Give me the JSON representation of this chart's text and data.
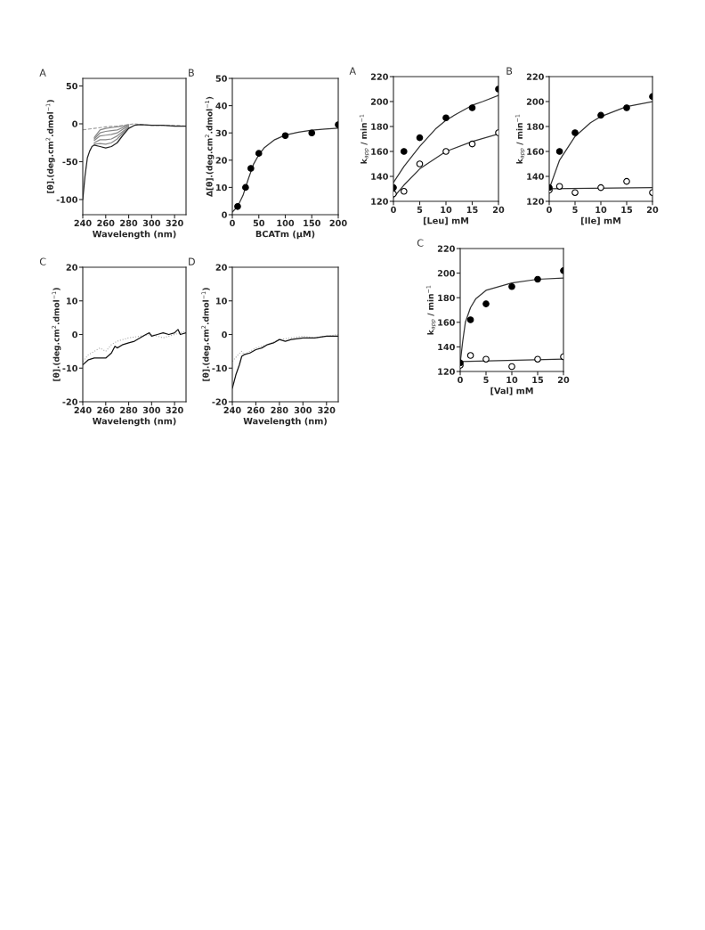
{
  "chart_data": [
    {
      "type": "line",
      "title": "A",
      "xlabel": "Wavelength (nm)",
      "ylabel": "[θ].(deg.cm$^{2}$.dmol$^{−1}$)",
      "xlim": [
        240,
        330
      ],
      "xticks": [
        240,
        260,
        280,
        300,
        320
      ],
      "ylim": [
        -120,
        60
      ],
      "yticks": [
        -100,
        -50,
        0,
        50
      ],
      "marker": "none",
      "x": [
        240,
        242,
        244,
        246,
        248,
        250,
        255,
        260,
        265,
        270,
        275,
        280,
        285,
        290,
        300,
        310,
        320,
        330
      ],
      "series": [
        {
          "color": "#999999",
          "line_style": "dashed",
          "x": [
            240,
            250,
            260,
            270,
            280,
            285,
            290,
            300,
            310,
            320,
            330
          ],
          "values": [
            -8,
            -6,
            -4,
            -3,
            -1,
            0,
            -1,
            -2,
            -2,
            -2,
            -3
          ]
        },
        {
          "color": "#888888",
          "values": [
            null,
            null,
            null,
            null,
            null,
            -18,
            -8,
            -6,
            -5,
            -4,
            -3,
            -1,
            null,
            null,
            null,
            null,
            null,
            null
          ]
        },
        {
          "color": "#888888",
          "values": [
            null,
            null,
            null,
            null,
            null,
            -20,
            -12,
            -10,
            -9,
            -8,
            -5,
            -2,
            null,
            null,
            null,
            null,
            null,
            null
          ]
        },
        {
          "color": "#888888",
          "values": [
            null,
            null,
            null,
            null,
            null,
            -22,
            -16,
            -15,
            -14,
            -12,
            -7,
            -3,
            null,
            null,
            null,
            null,
            null,
            null
          ]
        },
        {
          "color": "#888888",
          "values": [
            null,
            null,
            null,
            null,
            null,
            -25,
            -21,
            -21,
            -20,
            -16,
            -10,
            -4,
            null,
            null,
            null,
            null,
            null,
            null
          ]
        },
        {
          "color": "#888888",
          "values": [
            null,
            null,
            null,
            null,
            null,
            -27,
            -26,
            -27,
            -25,
            -20,
            -12,
            -5,
            null,
            null,
            null,
            null,
            null,
            null
          ]
        },
        {
          "color": "#222222",
          "values": [
            -100,
            -68,
            -45,
            -36,
            -30,
            -28,
            -30,
            -32,
            -30,
            -25,
            -15,
            -6,
            -2,
            -1,
            -2,
            -2,
            -3,
            -3
          ]
        }
      ]
    },
    {
      "type": "scatter",
      "title": "B",
      "xlabel": "BCATm (μM)",
      "ylabel": "Δ[θ].(deg.cm$^{2}$.dmol$^{−1}$)",
      "xlim": [
        0,
        200
      ],
      "xticks": [
        0,
        50,
        100,
        150,
        200
      ],
      "ylim": [
        0,
        50
      ],
      "yticks": [
        0,
        10,
        20,
        30,
        40,
        50
      ],
      "marker": "circle",
      "series": [
        {
          "type": "scatter",
          "color": "#000000",
          "x": [
            10,
            25,
            35,
            50,
            100,
            150,
            200
          ],
          "values": [
            3,
            10,
            17,
            22.5,
            29,
            30,
            33
          ]
        },
        {
          "type": "line",
          "color": "#333333",
          "marker": "none",
          "x": [
            0,
            10,
            20,
            30,
            40,
            50,
            60,
            80,
            100,
            125,
            150,
            175,
            200
          ],
          "values": [
            1,
            3,
            7,
            13,
            18.5,
            22,
            24.5,
            27.5,
            29.2,
            30.3,
            31,
            31.4,
            31.7
          ]
        }
      ]
    },
    {
      "type": "line",
      "title": "C",
      "xlabel": "Wavelength (nm)",
      "ylabel": "[θ].(deg.cm$^{2}$.dmol$^{−1}$)",
      "xlim": [
        240,
        330
      ],
      "xticks": [
        240,
        260,
        280,
        300,
        320
      ],
      "ylim": [
        -20,
        20
      ],
      "yticks": [
        -20,
        -10,
        0,
        10,
        20
      ],
      "marker": "none",
      "series": [
        {
          "color": "#aaaaaa",
          "line_style": "dotted",
          "x": [
            240,
            245,
            250,
            255,
            260,
            265,
            270,
            280,
            290,
            300,
            310,
            320,
            330
          ],
          "values": [
            -8,
            -6,
            -5,
            -4,
            -5,
            -3,
            -2,
            -1,
            -0.5,
            0,
            -1,
            0,
            1
          ]
        },
        {
          "color": "#111111",
          "x": [
            240,
            245,
            250,
            255,
            260,
            265,
            268,
            270,
            275,
            280,
            285,
            290,
            295,
            298,
            300,
            305,
            310,
            315,
            320,
            323,
            325,
            330
          ],
          "values": [
            -9,
            -7.5,
            -7,
            -7,
            -7,
            -5.5,
            -3.5,
            -4,
            -3,
            -2.5,
            -2,
            -1,
            0,
            0.5,
            -0.5,
            0,
            0.5,
            0,
            0.5,
            1.5,
            0,
            0.5
          ]
        }
      ]
    },
    {
      "type": "line",
      "title": "D",
      "xlabel": "Wavelength (nm)",
      "ylabel": "[θ].(deg.cm$^{2}$.dmol$^{−1}$)",
      "xlim": [
        240,
        330
      ],
      "xticks": [
        240,
        260,
        280,
        300,
        320
      ],
      "ylim": [
        -20,
        20
      ],
      "yticks": [
        -20,
        -10,
        0,
        10,
        20
      ],
      "marker": "none",
      "series": [
        {
          "color": "#aaaaaa",
          "line_style": "dotted",
          "x": [
            240,
            245,
            248,
            250,
            260,
            270,
            280,
            290,
            300,
            310,
            320,
            330
          ],
          "values": [
            -8,
            -6,
            -5,
            -6,
            -4,
            -3,
            -1.5,
            -1,
            -0.5,
            -1,
            -0.5,
            0
          ]
        },
        {
          "color": "#111111",
          "x": [
            240,
            243,
            246,
            248,
            250,
            255,
            260,
            265,
            270,
            275,
            280,
            285,
            290,
            300,
            310,
            320,
            330
          ],
          "values": [
            -16,
            -12,
            -9,
            -6.5,
            -6,
            -5.5,
            -4.5,
            -4,
            -3,
            -2.5,
            -1.5,
            -2,
            -1.5,
            -1,
            -1,
            -0.5,
            -0.5
          ]
        }
      ]
    },
    {
      "type": "scatter",
      "title": "A",
      "xlabel": "[Leu] mM",
      "ylabel": "k$_{app}$ / min$^{−1}$",
      "xlim": [
        0,
        20
      ],
      "xticks": [
        0,
        5,
        10,
        15,
        20
      ],
      "ylim": [
        120,
        220
      ],
      "yticks": [
        120,
        140,
        160,
        180,
        200,
        220
      ],
      "marker": "circle",
      "series": [
        {
          "type": "scatter",
          "color": "#000000",
          "x": [
            0,
            2,
            5,
            10,
            15,
            20
          ],
          "values": [
            131,
            160,
            171,
            187,
            195,
            210
          ]
        },
        {
          "type": "scatter",
          "color": "#ffffff",
          "x": [
            0,
            2,
            5,
            10,
            15,
            20
          ],
          "values": [
            126,
            128,
            150,
            160,
            166,
            175
          ]
        },
        {
          "type": "line",
          "color": "#333333",
          "marker": "none",
          "x": [
            0,
            2,
            5,
            8,
            10,
            12,
            15,
            17,
            20
          ],
          "values": [
            135,
            148,
            164,
            178,
            185,
            190,
            197,
            200,
            205
          ]
        },
        {
          "type": "line",
          "color": "#333333",
          "marker": "none",
          "x": [
            0,
            2,
            5,
            10,
            15,
            20
          ],
          "values": [
            123,
            133,
            146,
            160,
            168,
            174
          ]
        }
      ]
    },
    {
      "type": "scatter",
      "title": "B",
      "xlabel": "[Ile] mM",
      "ylabel": "k$_{app}$ / min$^{−1}$",
      "xlim": [
        0,
        20
      ],
      "xticks": [
        0,
        5,
        10,
        15,
        20
      ],
      "ylim": [
        120,
        220
      ],
      "yticks": [
        120,
        140,
        160,
        180,
        200,
        220
      ],
      "marker": "circle",
      "series": [
        {
          "type": "scatter",
          "color": "#000000",
          "x": [
            0,
            2,
            5,
            10,
            15,
            20
          ],
          "values": [
            131,
            160,
            175,
            189,
            195,
            204
          ]
        },
        {
          "type": "scatter",
          "color": "#ffffff",
          "x": [
            0,
            2,
            5,
            10,
            15,
            20
          ],
          "values": [
            129,
            132,
            127,
            131,
            136,
            127
          ]
        },
        {
          "type": "line",
          "color": "#333333",
          "marker": "none",
          "x": [
            0,
            2,
            5,
            8,
            10,
            15,
            20
          ],
          "values": [
            130,
            153,
            172,
            183,
            188,
            196,
            200
          ]
        },
        {
          "type": "line",
          "color": "#333333",
          "marker": "none",
          "x": [
            0,
            20
          ],
          "values": [
            130,
            131
          ]
        }
      ]
    },
    {
      "type": "scatter",
      "title": "C",
      "xlabel": "[Val] mM",
      "ylabel": "k$_{app}$ / min$^{−1}$",
      "xlim": [
        0,
        20
      ],
      "xticks": [
        0,
        5,
        10,
        15,
        20
      ],
      "ylim": [
        120,
        220
      ],
      "yticks": [
        120,
        140,
        160,
        180,
        200,
        220
      ],
      "marker": "circle",
      "series": [
        {
          "type": "scatter",
          "color": "#000000",
          "x": [
            0,
            2,
            5,
            10,
            15,
            20
          ],
          "values": [
            127,
            162,
            175,
            189,
            195,
            202
          ]
        },
        {
          "type": "scatter",
          "color": "#ffffff",
          "x": [
            0,
            2,
            5,
            10,
            15,
            20
          ],
          "values": [
            125,
            133,
            130,
            124,
            130,
            132
          ]
        },
        {
          "type": "line",
          "color": "#333333",
          "marker": "none",
          "x": [
            0,
            0.5,
            1,
            2,
            3,
            5,
            10,
            15,
            20
          ],
          "values": [
            127,
            145,
            160,
            172,
            179,
            186,
            192,
            195,
            196
          ]
        },
        {
          "type": "line",
          "color": "#333333",
          "marker": "none",
          "x": [
            0,
            20
          ],
          "values": [
            128,
            130
          ]
        }
      ]
    }
  ]
}
